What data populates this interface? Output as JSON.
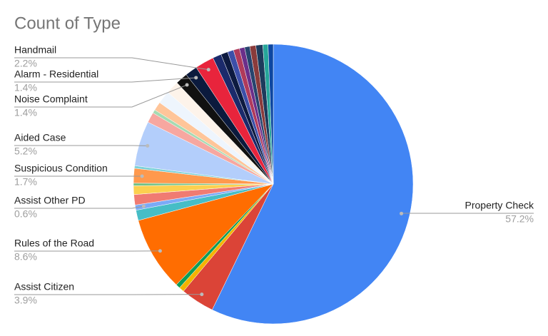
{
  "chart_data": {
    "type": "pie",
    "title": "Count of Type",
    "categories": [
      "Property Check",
      "Assist Citizen",
      null,
      null,
      "Rules of the Road",
      null,
      "Assist Other PD",
      null,
      null,
      null,
      "Suspicious Condition",
      null,
      "Aided Case",
      null,
      null,
      null,
      null,
      null,
      "Noise Complaint",
      "Alarm - Residential",
      "Handmail",
      null,
      null,
      null,
      null,
      null,
      null,
      null,
      null,
      null,
      null
    ],
    "values": [
      57.2,
      3.9,
      0.6,
      0.5,
      8.6,
      1.2,
      0.6,
      1.2,
      1.0,
      0.3,
      1.7,
      0.3,
      5.2,
      1.2,
      0.4,
      1.0,
      1.5,
      1.5,
      1.4,
      1.4,
      2.2,
      1.0,
      0.8,
      0.7,
      0.7,
      0.6,
      0.6,
      0.7,
      0.8,
      0.6,
      0.6
    ],
    "value_labels": [
      "57.2%",
      "3.9%",
      null,
      null,
      "8.6%",
      null,
      "0.6%",
      null,
      null,
      null,
      "1.7%",
      null,
      "5.2%",
      null,
      null,
      null,
      null,
      null,
      "1.4%",
      "1.4%",
      "2.2%",
      null,
      null,
      null,
      null,
      null,
      null,
      null,
      null,
      null,
      null
    ],
    "colors": [
      "#4285f4",
      "#db4437",
      "#f4b400",
      "#0f9d58",
      "#ff6d01",
      "#46bdc6",
      "#7baaf7",
      "#f07b72",
      "#fcd04f",
      "#71c287",
      "#ff994d",
      "#7ed1d7",
      "#b3cefb",
      "#f7a7a0",
      "#a6dbb3",
      "#ffc599",
      "#eef5fd",
      "#fdf3ea",
      "#111111",
      "#0b1a3d",
      "#e8243c",
      "#1b2a6b",
      "#0d1a40",
      "#3c4fa8",
      "#b03a5b",
      "#6b2f8a",
      "#27446e",
      "#8a3b3b",
      "#1d3b5c",
      "#26a69a",
      "#0d47a1"
    ]
  }
}
